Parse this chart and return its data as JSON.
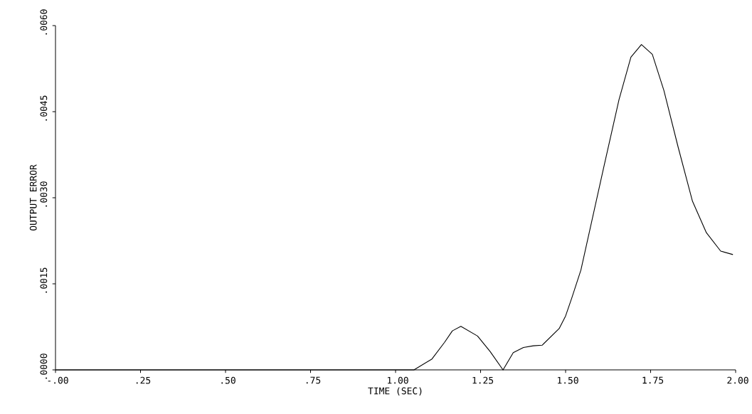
{
  "chart_data": {
    "type": "line",
    "xlabel": "TIME (SEC)",
    "ylabel": "OUTPUT ERROR",
    "x": [
      0,
      0.5,
      1.0,
      1.054,
      1.107,
      1.144,
      1.167,
      1.192,
      1.241,
      1.278,
      1.316,
      1.346,
      1.376,
      1.405,
      1.431,
      1.481,
      1.5,
      1.518,
      1.545,
      1.611,
      1.657,
      1.692,
      1.723,
      1.755,
      1.789,
      1.831,
      1.873,
      1.914,
      1.956,
      1.992
    ],
    "series": [
      {
        "color": "#000000",
        "values": [
          0,
          0,
          0,
          0,
          0.00019,
          0.00048,
          0.00068,
          0.00076,
          0.00059,
          0.00032,
          0,
          0.0003,
          0.00039,
          0.00042,
          0.00043,
          0.00072,
          0.00094,
          0.00125,
          0.00174,
          0.0035,
          0.00471,
          0.00545,
          0.00567,
          0.0055,
          0.00487,
          0.00388,
          0.00294,
          0.00239,
          0.00207,
          0.00201
        ]
      }
    ],
    "xlim": [
      0,
      2.0
    ],
    "ylim": [
      0,
      0.006
    ],
    "xticks": [
      {
        "value": 0,
        "label": "-.00"
      },
      {
        "value": 0.25,
        "label": ".25"
      },
      {
        "value": 0.5,
        "label": ".50"
      },
      {
        "value": 0.75,
        "label": ".75"
      },
      {
        "value": 1.0,
        "label": "1.00"
      },
      {
        "value": 1.25,
        "label": "1.25"
      },
      {
        "value": 1.5,
        "label": "1.50"
      },
      {
        "value": 1.75,
        "label": "1.75"
      },
      {
        "value": 2.0,
        "label": "2.00"
      }
    ],
    "yticks": [
      {
        "value": 0,
        "label": ".0000"
      },
      {
        "value": 0.0015,
        "label": ".0015"
      },
      {
        "value": 0.003,
        "label": ".0030"
      },
      {
        "value": 0.0045,
        "label": ".0045"
      },
      {
        "value": 0.006,
        "label": ".0060"
      }
    ],
    "marker": "none",
    "line_style": "solid"
  }
}
